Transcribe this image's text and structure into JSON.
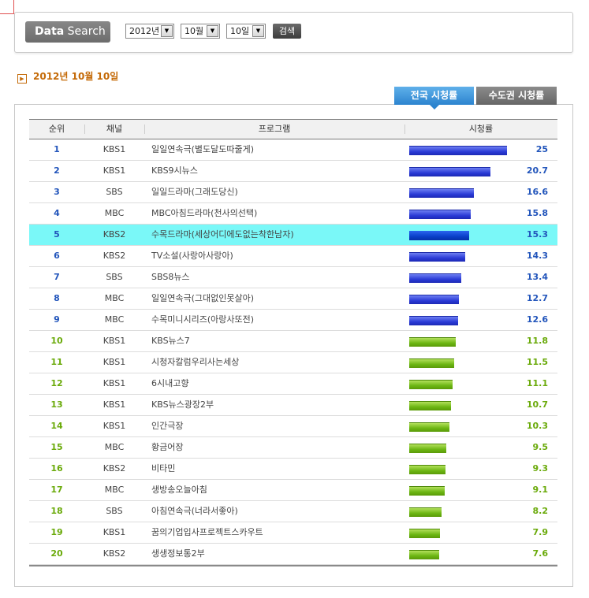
{
  "search": {
    "label_bold": "Data",
    "label_light": "Search",
    "year": "2012년",
    "month": "10월",
    "day": "10일",
    "button": "검색"
  },
  "date_heading": "2012년 10월 10일",
  "tabs": [
    {
      "label": "전국 시청률",
      "active": true
    },
    {
      "label": "수도권 시청률",
      "active": false
    }
  ],
  "table": {
    "headers": {
      "rank": "순위",
      "channel": "채널",
      "program": "프로그램",
      "rating": "시청률"
    },
    "max_rating": 25,
    "rows": [
      {
        "rank": "1",
        "channel": "KBS1",
        "program": "일일연속극(별도달도따줄게)",
        "rating": "25",
        "value": 25,
        "color": "blue"
      },
      {
        "rank": "2",
        "channel": "KBS1",
        "program": "KBS9시뉴스",
        "rating": "20.7",
        "value": 20.7,
        "color": "blue"
      },
      {
        "rank": "3",
        "channel": "SBS",
        "program": "일일드라마(그래도당신)",
        "rating": "16.6",
        "value": 16.6,
        "color": "blue"
      },
      {
        "rank": "4",
        "channel": "MBC",
        "program": "MBC아침드라마(천사의선택)",
        "rating": "15.8",
        "value": 15.8,
        "color": "blue"
      },
      {
        "rank": "5",
        "channel": "KBS2",
        "program": "수목드라마(세상어디에도없는착한남자)",
        "rating": "15.3",
        "value": 15.3,
        "color": "blue",
        "highlight": true
      },
      {
        "rank": "6",
        "channel": "KBS2",
        "program": "TV소설(사랑아사랑아)",
        "rating": "14.3",
        "value": 14.3,
        "color": "blue"
      },
      {
        "rank": "7",
        "channel": "SBS",
        "program": "SBS8뉴스",
        "rating": "13.4",
        "value": 13.4,
        "color": "blue"
      },
      {
        "rank": "8",
        "channel": "MBC",
        "program": "일일연속극(그대없인못살아)",
        "rating": "12.7",
        "value": 12.7,
        "color": "blue"
      },
      {
        "rank": "9",
        "channel": "MBC",
        "program": "수목미니시리즈(아랑사또전)",
        "rating": "12.6",
        "value": 12.6,
        "color": "blue"
      },
      {
        "rank": "10",
        "channel": "KBS1",
        "program": "KBS뉴스7",
        "rating": "11.8",
        "value": 11.8,
        "color": "green"
      },
      {
        "rank": "11",
        "channel": "KBS1",
        "program": "시청자칼럼우리사는세상",
        "rating": "11.5",
        "value": 11.5,
        "color": "green"
      },
      {
        "rank": "12",
        "channel": "KBS1",
        "program": "6시내고향",
        "rating": "11.1",
        "value": 11.1,
        "color": "green"
      },
      {
        "rank": "13",
        "channel": "KBS1",
        "program": "KBS뉴스광장2부",
        "rating": "10.7",
        "value": 10.7,
        "color": "green"
      },
      {
        "rank": "14",
        "channel": "KBS1",
        "program": "인간극장",
        "rating": "10.3",
        "value": 10.3,
        "color": "green"
      },
      {
        "rank": "15",
        "channel": "MBC",
        "program": "황금어장",
        "rating": "9.5",
        "value": 9.5,
        "color": "green"
      },
      {
        "rank": "16",
        "channel": "KBS2",
        "program": "비타민",
        "rating": "9.3",
        "value": 9.3,
        "color": "green"
      },
      {
        "rank": "17",
        "channel": "MBC",
        "program": "생방송오늘아침",
        "rating": "9.1",
        "value": 9.1,
        "color": "green"
      },
      {
        "rank": "18",
        "channel": "SBS",
        "program": "아침연속극(너라서좋아)",
        "rating": "8.2",
        "value": 8.2,
        "color": "green"
      },
      {
        "rank": "19",
        "channel": "KBS1",
        "program": "꿈의기업입사프로젝트스카우트",
        "rating": "7.9",
        "value": 7.9,
        "color": "green"
      },
      {
        "rank": "20",
        "channel": "KBS2",
        "program": "생생정보통2부",
        "rating": "7.6",
        "value": 7.6,
        "color": "green"
      }
    ]
  }
}
